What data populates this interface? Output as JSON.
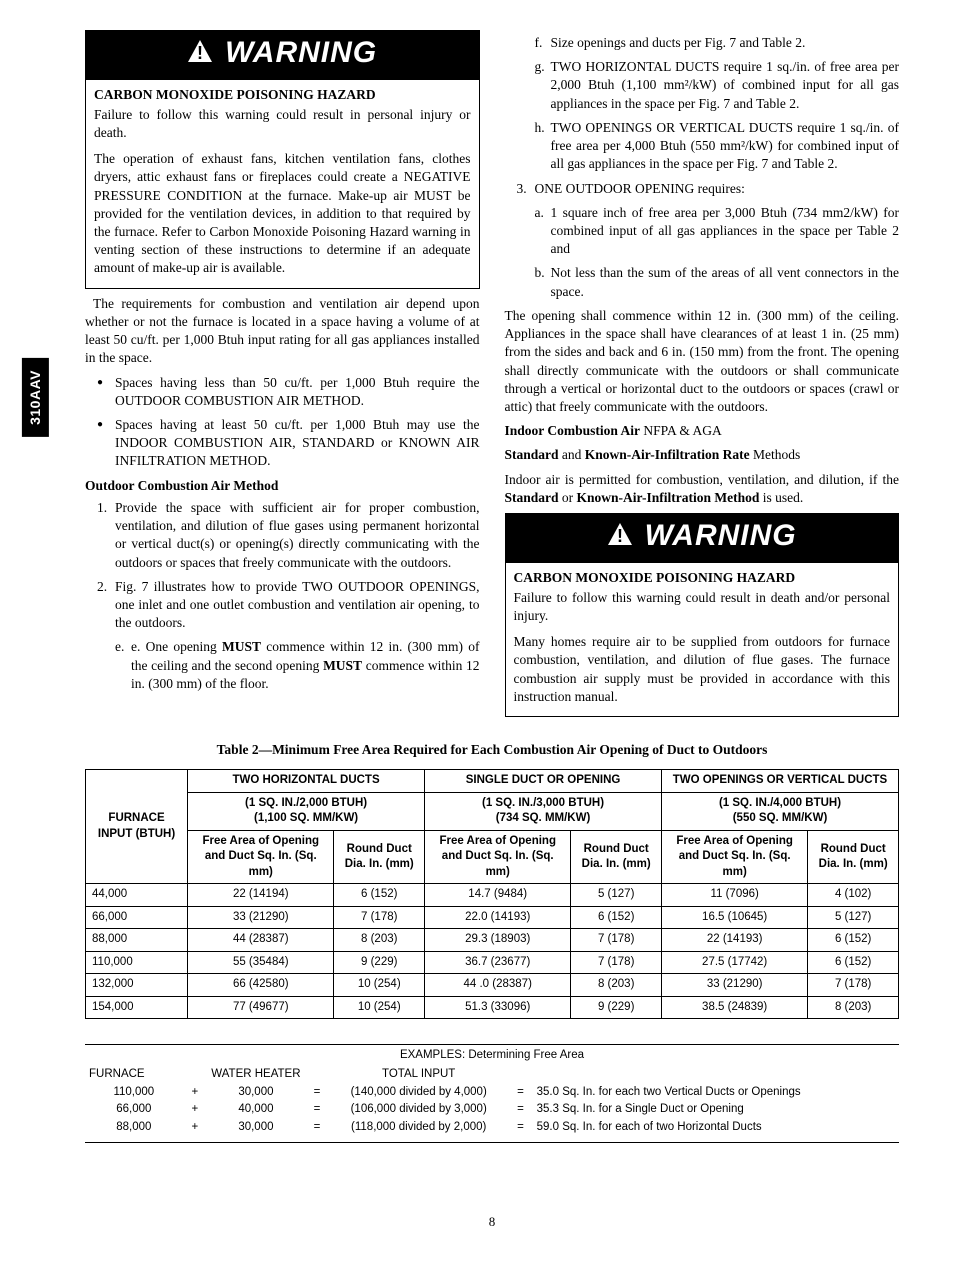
{
  "sideTab": "310AAV",
  "pageNumber": "8",
  "leftCol": {
    "warning": {
      "label": "WARNING",
      "title": "CARBON MONOXIDE POISONING HAZARD",
      "p1": "Failure to follow this warning could result in personal injury or death.",
      "p2": "The operation of exhaust fans, kitchen ventilation fans, clothes dryers, attic exhaust fans or fireplaces could create a NEGATIVE PRESSURE CONDITION at the furnace. Make-up air MUST be provided for the ventilation devices, in addition to that required by the furnace. Refer to Carbon Monoxide Poisoning Hazard warning in venting section of these instructions to determine if an adequate amount of make-up air is available."
    },
    "para1": "The requirements for combustion and ventilation air depend upon whether or not the furnace is located in a space having a volume of at least 50 cu/ft. per 1,000 Btuh input rating for all gas appliances installed in the space.",
    "bullets": [
      "Spaces having less than 50 cu/ft. per 1,000 Btuh require the OUTDOOR COMBUSTION AIR METHOD.",
      "Spaces having at least 50 cu/ft. per 1,000 Btuh may use the INDOOR COMBUSTION AIR, STANDARD or KNOWN AIR INFILTRATION METHOD."
    ],
    "subhead1": "Outdoor Combustion Air Method",
    "num1": "Provide the space with sufficient air for proper combustion, ventilation, and dilution of flue gases using permanent horizontal or vertical duct(s) or opening(s) directly communicating with the outdoors or spaces that freely communicate with the outdoors.",
    "num2": "Fig. 7 illustrates how to provide TWO OUTDOOR OPENINGS, one inlet and one outlet combustion and ventilation air opening, to the outdoors.",
    "num2e_pre": "e. One opening ",
    "num2e_b1": "MUST",
    "num2e_mid": " commence within 12 in. (300 mm) of the ceiling and the second opening ",
    "num2e_b2": "MUST",
    "num2e_post": " commence within 12 in. (300 mm) of the floor."
  },
  "rightCol": {
    "f": "Size openings and ducts per Fig. 7 and Table 2.",
    "g": "TWO HORIZONTAL DUCTS require 1 sq./in. of free area per 2,000 Btuh (1,100 mm²/kW) of combined input for all gas appliances in the space per Fig. 7 and Table 2.",
    "h": "TWO OPENINGS OR VERTICAL DUCTS require 1 sq./in. of free area per 4,000 Btuh (550 mm²/kW) for combined input of all gas appliances in the space per Fig. 7 and Table 2.",
    "num3": "ONE OUTDOOR OPENING requires:",
    "num3a": "1 square inch of free area per 3,000 Btuh (734 mm2/kW) for combined input of all gas appliances in the space per Table 2 and",
    "num3b": "Not less than the sum of the areas of all vent connectors in the space.",
    "para2": "The opening shall commence within 12 in. (300 mm) of the ceiling. Appliances in the space shall have clearances of at least 1 in. (25 mm) from the sides and back and 6 in. (150 mm) from the front. The opening shall directly communicate with the outdoors or shall communicate through a vertical or horizontal duct to the outdoors or spaces (crawl or attic) that freely communicate with the outdoors.",
    "line1_b": "Indoor Combustion Air",
    "line1_r": " NFPA & AGA",
    "line2_b1": "Standard",
    "line2_m1": " and ",
    "line2_b2": "Known-Air-Infiltration Rate",
    "line2_m2": " Methods",
    "para3_pre": "Indoor air is permitted for combustion, ventilation, and dilution, if the ",
    "para3_b1": "Standard",
    "para3_m": " or ",
    "para3_b2": "Known-Air-Infiltration Method",
    "para3_post": " is used.",
    "warning": {
      "label": "WARNING",
      "title": "CARBON MONOXIDE POISONING HAZARD",
      "p1": "Failure to follow this warning could result in death and/or personal injury.",
      "p2": "Many homes require air to be supplied from outdoors for furnace combustion, ventilation, and dilution of flue gases. The furnace combustion air supply must be provided in accordance with this instruction manual."
    }
  },
  "table": {
    "title": "Table 2—Minimum Free Area Required for Each Combustion Air Opening of Duct to Outdoors",
    "rowHeader": "FURNACE INPUT (BTUH)",
    "groups": [
      {
        "name": "TWO HORIZONTAL DUCTS",
        "sub": "(1 SQ. IN./2,000 BTUH)\n(1,100 SQ. MM/KW)"
      },
      {
        "name": "SINGLE DUCT OR OPENING",
        "sub": "(1 SQ. IN./3,000 BTUH)\n(734 SQ. MM/KW)"
      },
      {
        "name": "TWO OPENINGS OR VERTICAL DUCTS",
        "sub": "(1 SQ. IN./4,000 BTUH)\n(550 SQ. MM/KW)"
      }
    ],
    "colA": "Free Area of Opening and Duct Sq. In. (Sq. mm)",
    "colB": "Round Duct Dia. In. (mm)",
    "rows": [
      {
        "btuh": "44,000",
        "a1": "22  (14194)",
        "b1": "6  (152)",
        "a2": "14.7  (9484)",
        "b2": "5 (127)",
        "a3": "11  (7096)",
        "b3": "4 (102)"
      },
      {
        "btuh": "66,000",
        "a1": "33  (21290)",
        "b1": "7  (178)",
        "a2": "22.0  (14193)",
        "b2": "6 (152)",
        "a3": "16.5  (10645)",
        "b3": "5 (127)"
      },
      {
        "btuh": "88,000",
        "a1": "44  (28387)",
        "b1": "8  (203)",
        "a2": "29.3  (18903)",
        "b2": "7 (178)",
        "a3": "22  (14193)",
        "b3": "6 (152)"
      },
      {
        "btuh": "110,000",
        "a1": "55  (35484)",
        "b1": "9  (229)",
        "a2": "36.7  (23677)",
        "b2": "7 (178)",
        "a3": "27.5  (17742)",
        "b3": "6 (152)"
      },
      {
        "btuh": "132,000",
        "a1": "66  (42580)",
        "b1": "10  (254)",
        "a2": "44 .0 (28387)",
        "b2": "8 (203)",
        "a3": "33  (21290)",
        "b3": "7 (178)"
      },
      {
        "btuh": "154,000",
        "a1": "77  (49677)",
        "b1": "10  (254)",
        "a2": "51.3  (33096)",
        "b2": "9 (229)",
        "a3": "38.5  (24839)",
        "b3": "8 (203)"
      }
    ]
  },
  "examples": {
    "title": "EXAMPLES: Determining Free Area",
    "h1": "FURNACE",
    "h2": "WATER HEATER",
    "h3": "TOTAL INPUT",
    "rows": [
      {
        "f": "110,000",
        "w": "30,000",
        "t": "(140,000 divided by 4,000)",
        "r": "35.0 Sq. In. for each two Vertical Ducts or Openings"
      },
      {
        "f": "66,000",
        "w": "40,000",
        "t": "(106,000 divided by 3,000)",
        "r": "35.3 Sq. In. for a Single Duct or Opening"
      },
      {
        "f": "88,000",
        "w": "30,000",
        "t": "(118,000 divided by 2,000)",
        "r": "59.0 Sq. In. for each of two Horizontal Ducts"
      }
    ]
  }
}
